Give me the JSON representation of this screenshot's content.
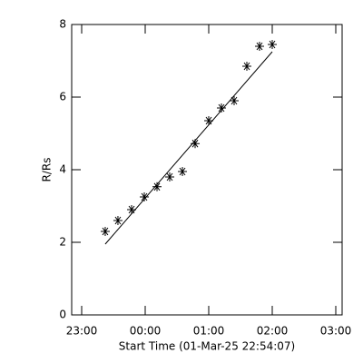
{
  "chart_data": {
    "type": "scatter",
    "x_label": "Start Time (01-Mar-25 22:54:07)",
    "y_label": "R/Rs",
    "x": [
      23.371,
      23.571,
      23.786,
      23.986,
      24.186,
      24.386,
      24.586,
      24.786,
      25.0,
      25.2,
      25.4,
      25.6,
      25.8,
      26.0
    ],
    "values": [
      2.3,
      2.6,
      2.9,
      3.25,
      3.53,
      3.8,
      3.95,
      4.72,
      5.35,
      5.7,
      5.9,
      6.85,
      7.4,
      7.45
    ],
    "fit_line": {
      "x": [
        23.371,
        26.0
      ],
      "y": [
        1.95,
        7.25
      ]
    },
    "color": "#000000",
    "xlim": [
      22.843,
      27.1
    ],
    "xticks": [
      {
        "value": 23,
        "label": "23:00"
      },
      {
        "value": 24,
        "label": "00:00"
      },
      {
        "value": 25,
        "label": "01:00"
      },
      {
        "value": 26,
        "label": "02:00"
      },
      {
        "value": 27,
        "label": "03:00"
      }
    ],
    "ylim": [
      0,
      8
    ],
    "yticks": [
      0,
      2,
      4,
      6,
      8
    ]
  }
}
